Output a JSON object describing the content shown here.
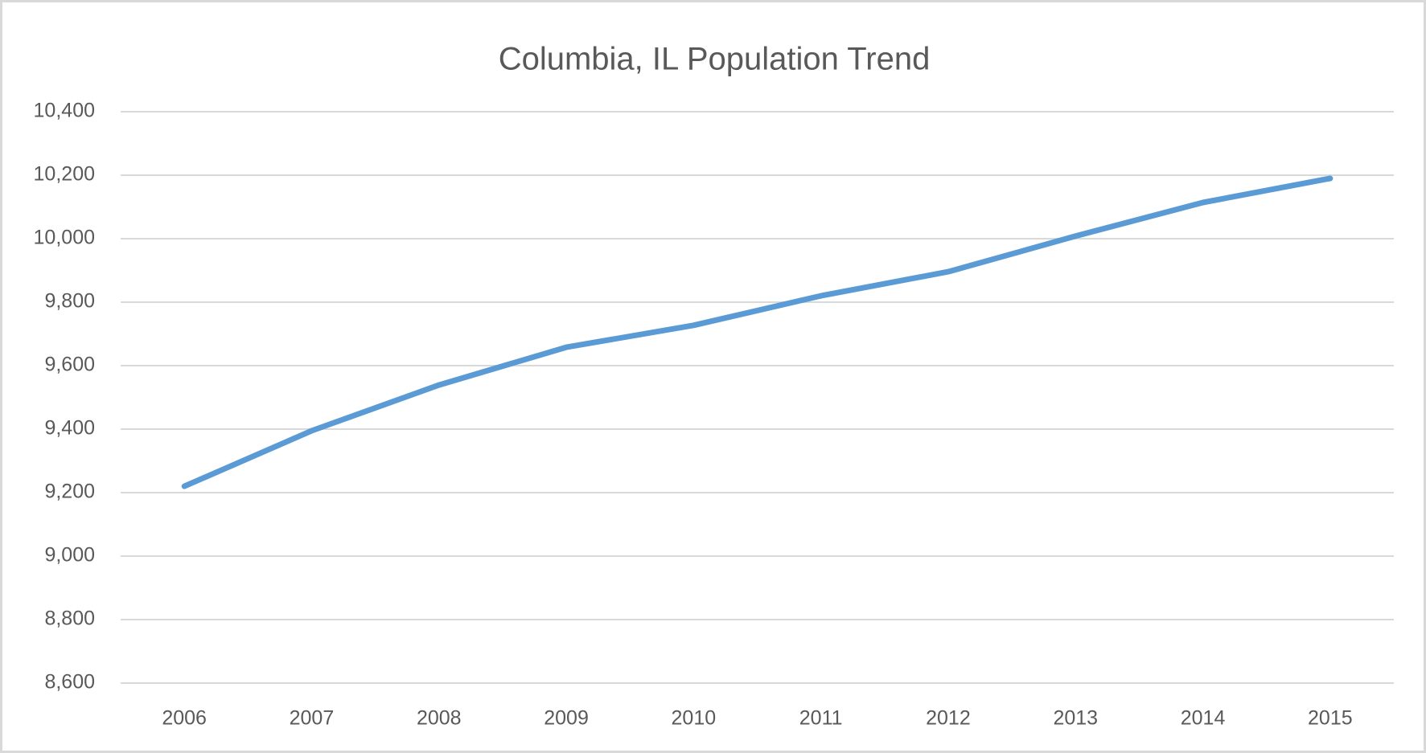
{
  "chart_data": {
    "type": "line",
    "title": "Columbia, IL Population Trend",
    "xlabel": "",
    "ylabel": "",
    "categories": [
      "2006",
      "2007",
      "2008",
      "2009",
      "2010",
      "2011",
      "2012",
      "2013",
      "2014",
      "2015"
    ],
    "series": [
      {
        "name": "Population",
        "color": "#5b9bd5",
        "values": [
          9220,
          9395,
          9539,
          9658,
          9727,
          9820,
          9896,
          10008,
          10114,
          10190
        ]
      }
    ],
    "ylim": [
      8600,
      10400
    ],
    "y_ticks": [
      10400,
      10200,
      10000,
      9800,
      9600,
      9400,
      9200,
      9000,
      8800,
      8600
    ],
    "y_tick_labels": [
      "10,400",
      "10,200",
      "10,000",
      "9,800",
      "9,600",
      "9,400",
      "9,200",
      "9,000",
      "8,800",
      "8,600"
    ],
    "grid": true,
    "legend": "none",
    "colors": {
      "grid": "#d9d9d9",
      "text": "#595959",
      "border": "#d9d9d9"
    }
  }
}
